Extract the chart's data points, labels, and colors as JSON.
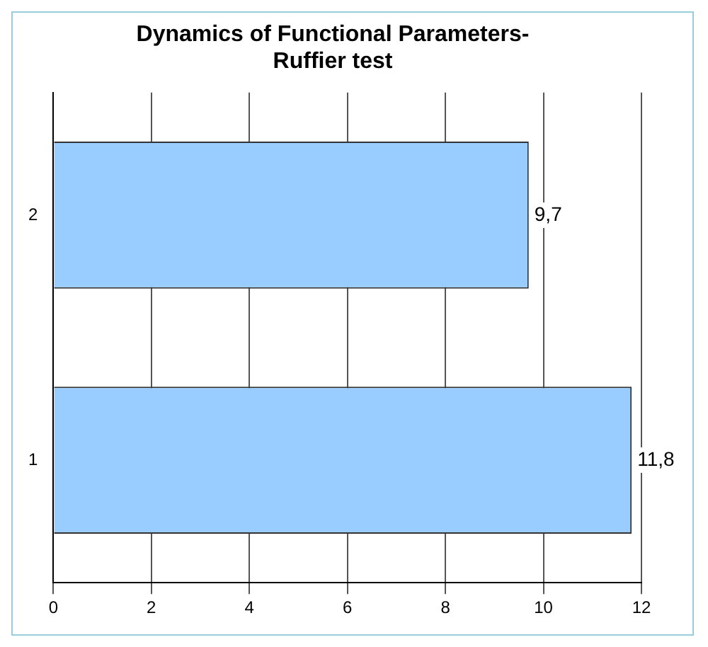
{
  "chart_data": {
    "type": "bar",
    "orientation": "horizontal",
    "title": "Dynamics of Functional Parameters- Ruffier test",
    "categories": [
      "2",
      "1"
    ],
    "values": [
      9.7,
      11.8
    ],
    "value_labels": [
      "9,7",
      "11,8"
    ],
    "color": "#99ccff",
    "xlim": [
      0,
      12
    ],
    "xticks": [
      0,
      2,
      4,
      6,
      8,
      10,
      12
    ],
    "grid": "x"
  }
}
